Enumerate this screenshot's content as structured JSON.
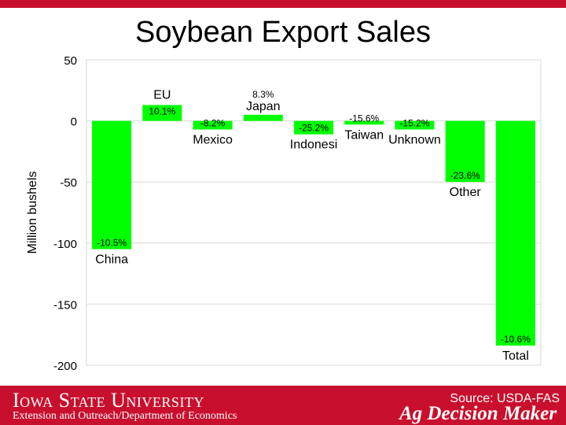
{
  "slide": {
    "title": "Soybean Export Sales"
  },
  "footer": {
    "university": "Iowa State University",
    "department": "Extension and Outreach/Department of Economics",
    "source": "Source: USDA-FAS",
    "brand": "Ag Decision Maker"
  },
  "colors": {
    "bar": "#00ff00",
    "accent": "#c8102e",
    "grid": "#d9d9d9"
  },
  "chart_data": {
    "type": "bar",
    "title": "Soybean Export Sales",
    "xlabel": "",
    "ylabel": "Million bushels",
    "ylim": [
      -200,
      50
    ],
    "yticks": [
      50,
      0,
      -50,
      -100,
      -150,
      -200
    ],
    "grid": true,
    "categories": [
      "China",
      "EU",
      "Mexico",
      "Japan",
      "Indonesi",
      "Taiwan",
      "Unknown",
      "Other",
      "Total"
    ],
    "values": [
      -105,
      13,
      -7,
      5,
      -11,
      -3,
      -7,
      -50,
      -184
    ],
    "data_labels": [
      "-10.5%",
      "10.1%",
      "-8.2%",
      "8.3%",
      "-25.2%",
      "-15.6%",
      "-15.2%",
      "-23.6%",
      "-10.6%"
    ]
  }
}
